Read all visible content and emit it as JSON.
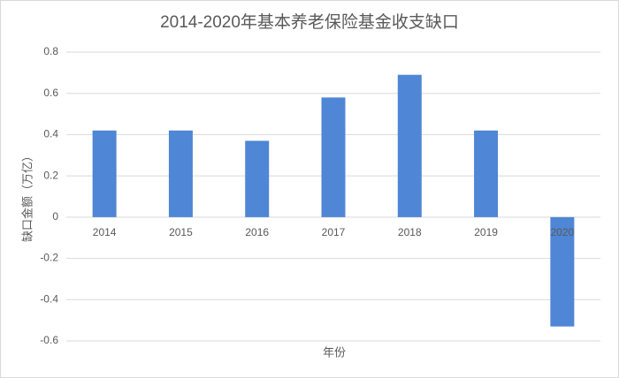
{
  "chart_data": {
    "type": "bar",
    "title": "2014-2020年基本养老保险基金收支缺口",
    "x_label": "年份",
    "y_label": "缺口金额（万亿）",
    "categories": [
      "2014",
      "2015",
      "2016",
      "2017",
      "2018",
      "2019",
      "2020"
    ],
    "values": [
      0.42,
      0.42,
      0.37,
      0.58,
      0.69,
      0.42,
      -0.53
    ],
    "color": "#4f86d5",
    "ylim": [
      -0.6,
      0.8
    ],
    "yticks": [
      -0.6,
      -0.4,
      -0.2,
      0,
      0.2,
      0.4,
      0.6,
      0.8
    ],
    "grid": true
  }
}
